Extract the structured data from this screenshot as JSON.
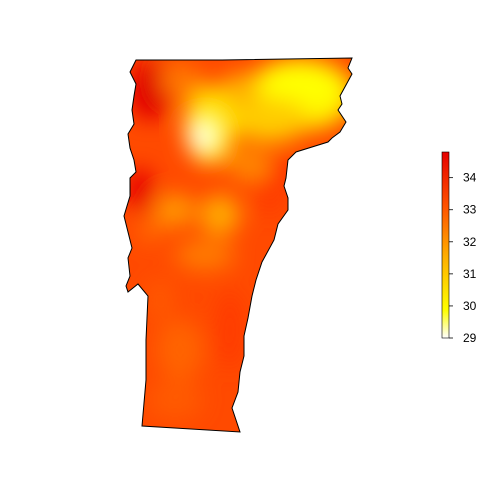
{
  "map": {
    "region": "Vermont",
    "fill_scale": "heat"
  },
  "legend": {
    "min": 29,
    "max": 34.8,
    "ticks": [
      "34",
      "33",
      "32",
      "31",
      "30",
      "29"
    ],
    "tick_values": [
      34,
      33,
      32,
      31,
      30,
      29
    ],
    "colors": {
      "low": "#ffffff",
      "mid_low": "#ffff00",
      "mid": "#ff9900",
      "mid_high": "#ff4400",
      "high": "#e60000"
    }
  }
}
